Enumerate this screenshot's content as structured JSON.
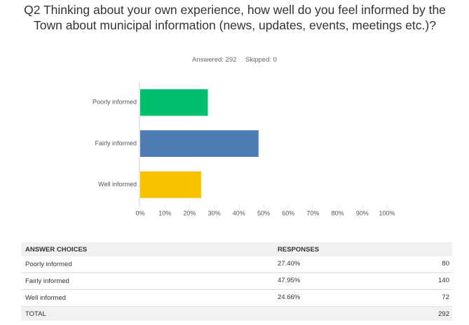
{
  "chart_data": {
    "type": "hbar",
    "title": "Q2 Thinking about your own experience, how well do you feel informed by the Town about municipal information (news, updates, events, meetings etc.)?",
    "categories": [
      "Poorly informed",
      "Fairly informed",
      "Well informed"
    ],
    "values": [
      27.4,
      47.95,
      24.66
    ],
    "colors": [
      "#00bf6f",
      "#507cb6",
      "#f7c100"
    ],
    "xlim": [
      0,
      100
    ],
    "xticks": [
      {
        "value": 0,
        "label": "0%"
      },
      {
        "value": 10,
        "label": "10%"
      },
      {
        "value": 20,
        "label": "20%"
      },
      {
        "value": 30,
        "label": "30%"
      },
      {
        "value": 40,
        "label": "40%"
      },
      {
        "value": 50,
        "label": "50%"
      },
      {
        "value": 60,
        "label": "60%"
      },
      {
        "value": 70,
        "label": "70%"
      },
      {
        "value": 80,
        "label": "80%"
      },
      {
        "value": 90,
        "label": "90%"
      },
      {
        "value": 100,
        "label": "100%"
      }
    ],
    "grid": false
  },
  "summary": {
    "answered": "Answered: 292",
    "skipped": "Skipped: 0"
  },
  "table": {
    "headers": [
      "ANSWER CHOICES",
      "RESPONSES"
    ],
    "rows": [
      [
        "Poorly informed",
        "27.40%",
        80
      ],
      [
        "Fairly informed",
        "47.95%",
        140
      ],
      [
        "Well informed",
        "24.66%",
        72
      ]
    ],
    "total": [
      "TOTAL",
      292
    ]
  }
}
